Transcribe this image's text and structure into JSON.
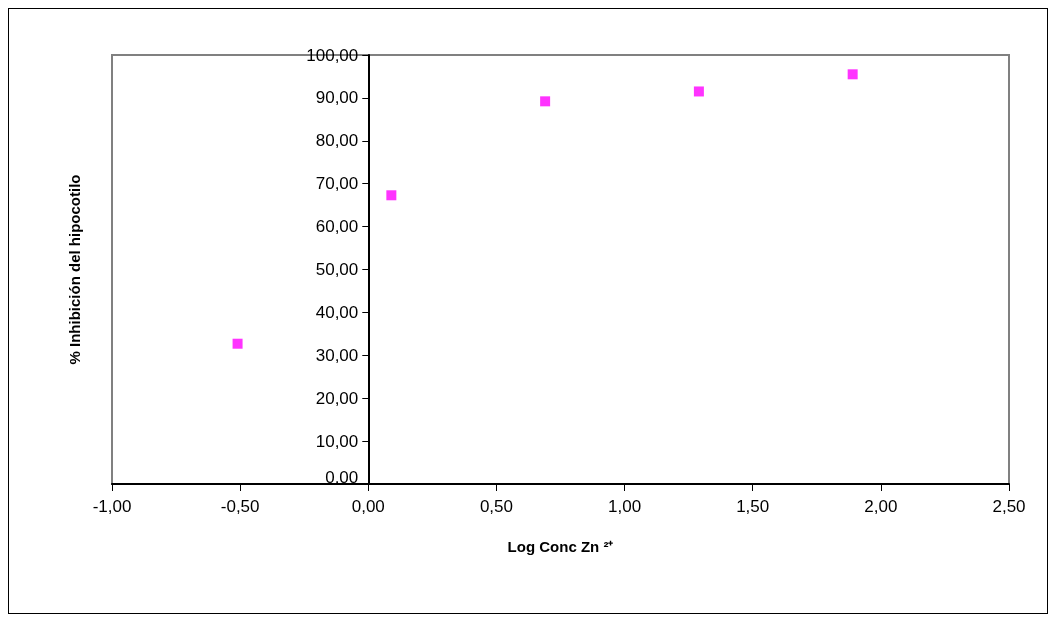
{
  "chart_data": {
    "type": "scatter",
    "xlabel": "Log Conc Zn ²⁺",
    "ylabel": "% Inhibición del hipocotilo",
    "x": [
      -0.51,
      0.09,
      0.69,
      1.29,
      1.89
    ],
    "values": [
      32.7,
      67.3,
      89.2,
      91.5,
      95.5
    ],
    "color": "#ff00ff",
    "marker": "square",
    "xlim": [
      -1,
      2.5
    ],
    "xticks": [
      {
        "value": -1,
        "label": "-1,00"
      },
      {
        "value": -0.5,
        "label": "-0,50"
      },
      {
        "value": 0,
        "label": "0,00"
      },
      {
        "value": 0.5,
        "label": "0,50"
      },
      {
        "value": 1,
        "label": "1,00"
      },
      {
        "value": 1.5,
        "label": "1,50"
      },
      {
        "value": 2,
        "label": "2,00"
      },
      {
        "value": 2.5,
        "label": "2,50"
      }
    ],
    "ylim": [
      0,
      100
    ],
    "yticks": [
      {
        "value": 0,
        "label": "0,00"
      },
      {
        "value": 10,
        "label": "10,00"
      },
      {
        "value": 20,
        "label": "20,00"
      },
      {
        "value": 30,
        "label": "30,00"
      },
      {
        "value": 40,
        "label": "40,00"
      },
      {
        "value": 50,
        "label": "50,00"
      },
      {
        "value": 60,
        "label": "60,00"
      },
      {
        "value": 70,
        "label": "70,00"
      },
      {
        "value": 80,
        "label": "80,00"
      },
      {
        "value": 90,
        "label": "90,00"
      },
      {
        "value": 100,
        "label": "100,00"
      }
    ],
    "grid": false
  }
}
